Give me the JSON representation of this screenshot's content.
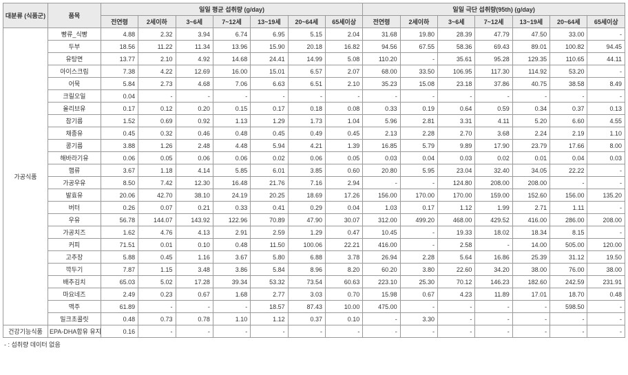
{
  "colors": {
    "header_bg": "#eaeaea",
    "border": "#999999",
    "text": "#333333"
  },
  "font_size_pt": 9,
  "header": {
    "col_category": "대분류\n(식품군)",
    "col_item": "품목",
    "group_mean": "일일 평균 섭취량 (g/day)",
    "group_p95": "일일 극단 섭취량(95th) (g/day)",
    "ages": [
      "전연령",
      "2세이하",
      "3~6세",
      "7~12세",
      "13~19세",
      "20~64세",
      "65세이상"
    ]
  },
  "categories": {
    "processed": "가공식품",
    "functional": "건강기능식품"
  },
  "footnote": "- : 섭취량 데이터 없음",
  "rows": [
    {
      "cat": "processed",
      "item": "빵류_식빵",
      "mean": [
        "4.88",
        "2.32",
        "3.94",
        "6.74",
        "6.95",
        "5.15",
        "2.04"
      ],
      "p95": [
        "31.68",
        "19.80",
        "28.39",
        "47.79",
        "47.50",
        "33.00",
        "-"
      ]
    },
    {
      "cat": "processed",
      "item": "두부",
      "mean": [
        "18.56",
        "11.22",
        "11.34",
        "13.96",
        "15.90",
        "20.18",
        "16.82"
      ],
      "p95": [
        "94.56",
        "67.55",
        "58.36",
        "69.43",
        "89.01",
        "100.82",
        "94.45"
      ]
    },
    {
      "cat": "processed",
      "item": "유탕면",
      "mean": [
        "13.77",
        "2.10",
        "4.92",
        "14.68",
        "24.41",
        "14.99",
        "5.08"
      ],
      "p95": [
        "110.20",
        "-",
        "35.61",
        "95.28",
        "129.35",
        "110.65",
        "44.11"
      ]
    },
    {
      "cat": "processed",
      "item": "아이스크림",
      "mean": [
        "7.38",
        "4.22",
        "12.69",
        "16.00",
        "15.01",
        "6.57",
        "2.07"
      ],
      "p95": [
        "68.00",
        "33.50",
        "106.95",
        "117.30",
        "114.92",
        "53.20",
        "-"
      ]
    },
    {
      "cat": "processed",
      "item": "어묵",
      "mean": [
        "5.84",
        "2.73",
        "4.68",
        "7.06",
        "6.63",
        "6.51",
        "2.10"
      ],
      "p95": [
        "35.23",
        "15.08",
        "23.18",
        "37.86",
        "40.75",
        "38.58",
        "8.49"
      ]
    },
    {
      "cat": "processed",
      "item": "크릴오일",
      "mean": [
        "0.04",
        "-",
        "-",
        "-",
        "-",
        "-",
        "-"
      ],
      "p95": [
        "-",
        "-",
        "-",
        "-",
        "-",
        "-",
        "-"
      ]
    },
    {
      "cat": "processed",
      "item": "올리브유",
      "mean": [
        "0.17",
        "0.12",
        "0.20",
        "0.15",
        "0.17",
        "0.18",
        "0.08"
      ],
      "p95": [
        "0.33",
        "0.19",
        "0.64",
        "0.59",
        "0.34",
        "0.37",
        "0.13"
      ]
    },
    {
      "cat": "processed",
      "item": "참기름",
      "mean": [
        "1.52",
        "0.69",
        "0.92",
        "1.13",
        "1.29",
        "1.73",
        "1.04"
      ],
      "p95": [
        "5.96",
        "2.81",
        "3.31",
        "4.11",
        "5.20",
        "6.60",
        "4.55"
      ]
    },
    {
      "cat": "processed",
      "item": "채종유",
      "mean": [
        "0.45",
        "0.32",
        "0.46",
        "0.48",
        "0.45",
        "0.49",
        "0.45"
      ],
      "p95": [
        "2.13",
        "2.28",
        "2.70",
        "3.68",
        "2.24",
        "2.19",
        "1.10"
      ]
    },
    {
      "cat": "processed",
      "item": "콩기름",
      "mean": [
        "3.88",
        "1.26",
        "2.48",
        "4.48",
        "5.94",
        "4.21",
        "1.39"
      ],
      "p95": [
        "16.85",
        "5.79",
        "9.89",
        "17.90",
        "23.79",
        "17.66",
        "8.00"
      ]
    },
    {
      "cat": "processed",
      "item": "해바라기유",
      "mean": [
        "0.06",
        "0.05",
        "0.06",
        "0.06",
        "0.02",
        "0.06",
        "0.05"
      ],
      "p95": [
        "0.03",
        "0.04",
        "0.03",
        "0.02",
        "0.01",
        "0.04",
        "0.03"
      ]
    },
    {
      "cat": "processed",
      "item": "햄류",
      "mean": [
        "3.67",
        "1.18",
        "4.14",
        "5.85",
        "6.01",
        "3.85",
        "0.60"
      ],
      "p95": [
        "20.80",
        "5.95",
        "23.04",
        "32.40",
        "34.05",
        "22.22",
        "-"
      ]
    },
    {
      "cat": "processed",
      "item": "가공우유",
      "mean": [
        "8.50",
        "7.42",
        "12.30",
        "16.48",
        "21.76",
        "7.16",
        "2.94"
      ],
      "p95": [
        "-",
        "-",
        "124.80",
        "208.00",
        "208.00",
        "-",
        "-"
      ]
    },
    {
      "cat": "processed",
      "item": "발효유",
      "mean": [
        "20.06",
        "42.70",
        "38.10",
        "24.19",
        "20.25",
        "18.69",
        "17.26"
      ],
      "p95": [
        "156.00",
        "170.00",
        "170.00",
        "159.00",
        "152.60",
        "156.00",
        "135.20"
      ]
    },
    {
      "cat": "processed",
      "item": "버터",
      "mean": [
        "0.26",
        "0.07",
        "0.21",
        "0.33",
        "0.41",
        "0.29",
        "0.04"
      ],
      "p95": [
        "1.03",
        "0.17",
        "1.12",
        "1.99",
        "2.71",
        "1.11",
        "-"
      ]
    },
    {
      "cat": "processed",
      "item": "우유",
      "mean": [
        "56.78",
        "144.07",
        "143.92",
        "122.96",
        "70.89",
        "47.90",
        "30.07"
      ],
      "p95": [
        "312.00",
        "499.20",
        "468.00",
        "429.52",
        "416.00",
        "286.00",
        "208.00"
      ]
    },
    {
      "cat": "processed",
      "item": "가공치즈",
      "mean": [
        "1.62",
        "4.76",
        "4.13",
        "2.91",
        "2.59",
        "1.29",
        "0.47"
      ],
      "p95": [
        "10.45",
        "-",
        "19.33",
        "18.02",
        "18.34",
        "8.15",
        "-"
      ]
    },
    {
      "cat": "processed",
      "item": "커피",
      "mean": [
        "71.51",
        "0.01",
        "0.10",
        "0.48",
        "11.50",
        "100.06",
        "22.21"
      ],
      "p95": [
        "416.00",
        "-",
        "2.58",
        "-",
        "14.00",
        "505.00",
        "120.00"
      ]
    },
    {
      "cat": "processed",
      "item": "고추장",
      "mean": [
        "5.88",
        "0.45",
        "1.16",
        "3.67",
        "5.80",
        "6.88",
        "3.78"
      ],
      "p95": [
        "26.94",
        "2.28",
        "5.64",
        "16.86",
        "25.39",
        "31.12",
        "19.50"
      ]
    },
    {
      "cat": "processed",
      "item": "깍두기",
      "mean": [
        "7.87",
        "1.15",
        "3.48",
        "3.86",
        "5.84",
        "8.96",
        "8.20"
      ],
      "p95": [
        "60.20",
        "3.80",
        "22.60",
        "34.20",
        "38.00",
        "76.00",
        "38.00"
      ]
    },
    {
      "cat": "processed",
      "item": "배추김치",
      "mean": [
        "65.03",
        "5.02",
        "17.28",
        "39.34",
        "53.32",
        "73.54",
        "60.63"
      ],
      "p95": [
        "223.10",
        "25.30",
        "70.12",
        "146.23",
        "182.60",
        "242.59",
        "231.91"
      ]
    },
    {
      "cat": "processed",
      "item": "마요네즈",
      "mean": [
        "2.49",
        "0.23",
        "0.67",
        "1.68",
        "2.77",
        "3.03",
        "0.70"
      ],
      "p95": [
        "15.98",
        "0.67",
        "4.23",
        "11.89",
        "17.01",
        "18.70",
        "0.48"
      ]
    },
    {
      "cat": "processed",
      "item": "맥주",
      "mean": [
        "61.89",
        "-",
        "-",
        "-",
        "18.57",
        "87.43",
        "10.00"
      ],
      "p95": [
        "475.00",
        "-",
        "-",
        "-",
        "-",
        "598.50",
        "-"
      ]
    },
    {
      "cat": "processed",
      "item": "밀크초콜릿",
      "mean": [
        "0.48",
        "0.73",
        "0.78",
        "1.10",
        "1.12",
        "0.37",
        "0.10"
      ],
      "p95": [
        "-",
        "3.30",
        "-",
        "-",
        "-",
        "-",
        "-"
      ]
    },
    {
      "cat": "functional",
      "item": "EPA-DHA함유\n유지",
      "mean": [
        "0.16",
        "-",
        "-",
        "-",
        "-",
        "-",
        "-"
      ],
      "p95": [
        "-",
        "-",
        "-",
        "-",
        "-",
        "-",
        "-"
      ]
    }
  ]
}
